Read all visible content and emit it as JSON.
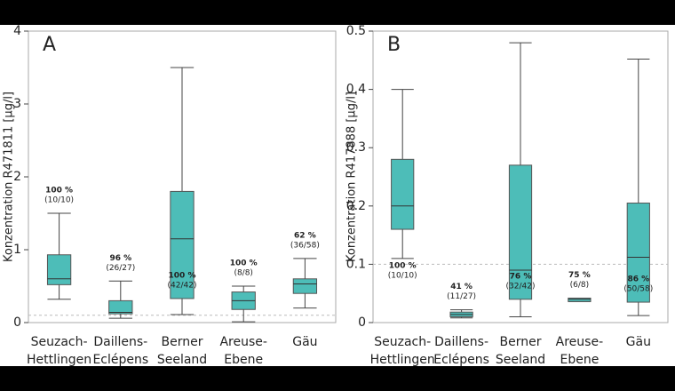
{
  "chart_data": [
    {
      "type": "box",
      "panel_label": "A",
      "y_label": "Konzentration R471811  [µg/l]",
      "categories": [
        [
          "Seuzach-",
          "Hettlingen"
        ],
        [
          "Daillens-",
          "Eclépens"
        ],
        [
          "Berner",
          "Seeland"
        ],
        [
          "Areuse-",
          "Ebene"
        ],
        [
          "Gäu"
        ]
      ],
      "series": [
        {
          "color": "#4dbdb8",
          "min": [
            0.32,
            0.06,
            0.11,
            0.01,
            0.2
          ],
          "q1": [
            0.52,
            0.12,
            0.33,
            0.18,
            0.4
          ],
          "median": [
            0.6,
            0.14,
            1.15,
            0.3,
            0.53
          ],
          "q3": [
            0.93,
            0.3,
            1.8,
            0.42,
            0.6
          ],
          "max": [
            1.5,
            0.57,
            3.5,
            0.5,
            0.88
          ]
        }
      ],
      "pct_labels": [
        "100 %",
        "96 %",
        "100 %",
        "100 %",
        "62 %"
      ],
      "count_labels": [
        "(10/10)",
        "(26/27)",
        "(42/42)",
        "(8/8)",
        "(36/58)"
      ],
      "ylim": [
        0,
        4
      ],
      "yticks": [
        0,
        1,
        2,
        3,
        4
      ],
      "reference_line": 0.1
    },
    {
      "type": "box",
      "panel_label": "B",
      "y_label": "Konzentration R417888  [µg/l]",
      "categories": [
        [
          "Seuzach-",
          "Hettlingen"
        ],
        [
          "Daillens-",
          "Eclépens"
        ],
        [
          "Berner",
          "Seeland"
        ],
        [
          "Areuse-",
          "Ebene"
        ],
        [
          "Gäu"
        ]
      ],
      "series": [
        {
          "color": "#4dbdb8",
          "min": [
            0.11,
            0.008,
            0.01,
            0.036,
            0.012
          ],
          "q1": [
            0.16,
            0.01,
            0.04,
            0.036,
            0.035
          ],
          "median": [
            0.2,
            0.014,
            0.09,
            0.04,
            0.112
          ],
          "q3": [
            0.28,
            0.018,
            0.27,
            0.042,
            0.205
          ],
          "max": [
            0.4,
            0.022,
            0.48,
            0.042,
            0.452
          ]
        }
      ],
      "pct_labels": [
        "100 %",
        "41 %",
        "76 %",
        "75 %",
        "86 %"
      ],
      "count_labels": [
        "(10/10)",
        "(11/27)",
        "(32/42)",
        "(6/8)",
        "(50/58)"
      ],
      "ylim": [
        0,
        0.5
      ],
      "yticks": [
        0,
        0.1,
        0.2,
        0.3,
        0.4,
        0.5
      ],
      "reference_line": 0.1
    }
  ]
}
